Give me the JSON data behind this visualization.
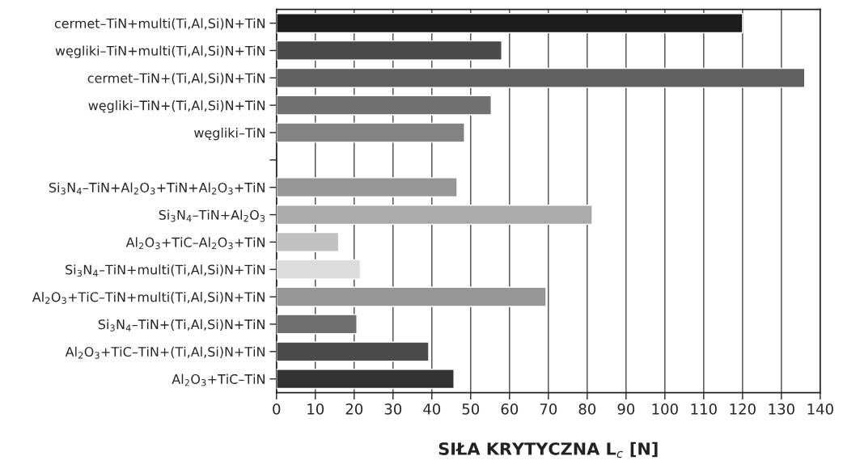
{
  "chart_data": {
    "type": "bar",
    "orientation": "horizontal",
    "xlabel": "SIŁA KRYTYCZNA L$_{c}$ [N]",
    "categories": [
      "cermet–TiN+multi(Ti,Al,Si)N+TiN",
      "węgliki–TiN+multi(Ti,Al,Si)N+TiN",
      "cermet–TiN+(Ti,Al,Si)N+TiN",
      "węgliki–TiN+(Ti,Al,Si)N+TiN",
      "węgliki–TiN",
      null,
      "Si$_{3}$N$_{4}$–TiN+Al$_{2}$O$_{3}$+TiN+Al$_{2}$O$_{3}$+TiN",
      "Si$_{3}$N$_{4}$–TiN+Al$_{2}$O$_{3}$",
      "Al$_{2}$O$_{3}$+TiC–Al$_{2}$O$_{3}$+TiN",
      "Si$_{3}$N$_{4}$–TiN+multi(Ti,Al,Si)N+TiN",
      "Al$_{2}$O$_{3}$+TiC–TiN+multi(Ti,Al,Si)N+TiN",
      "Si$_{3}$N$_{4}$–TiN+(Ti,Al,Si)N+TiN",
      "Al$_{2}$O$_{3}$+TiC–TiN+(Ti,Al,Si)N+TiN",
      "Al$_{2}$O$_{3}$+TiC–TiN"
    ],
    "values": [
      120,
      58,
      136,
      55.3,
      48.4,
      null,
      46.5,
      81.3,
      16,
      21.6,
      69.4,
      20.7,
      39.2,
      45.7
    ],
    "colors": [
      "#1c1c1c",
      "#4a4a4a",
      "#5f5f5f",
      "#707070",
      "#828282",
      "#ffffff",
      "#969696",
      "#aaaaaa",
      "#c0c0c0",
      "#dcdcdc",
      "#969696",
      "#6e6e6e",
      "#4a4a4a",
      "#333333"
    ],
    "xlim": [
      0,
      140
    ],
    "xticks": [
      0,
      10,
      20,
      30,
      40,
      50,
      60,
      70,
      80,
      90,
      100,
      110,
      120,
      130,
      140
    ],
    "grid": "x"
  }
}
